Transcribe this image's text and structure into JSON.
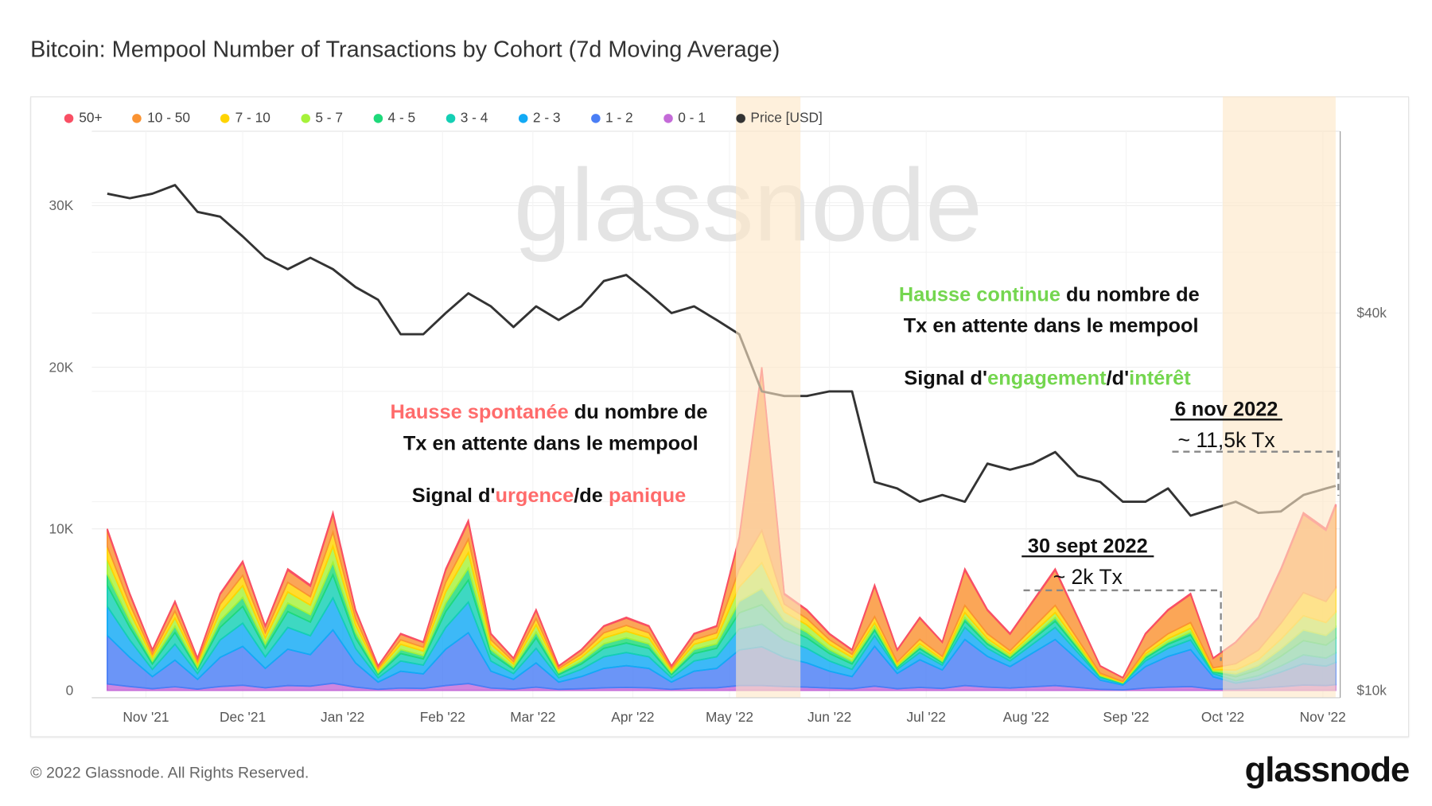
{
  "title": "Bitcoin: Mempool Number of Transactions by Cohort (7d Moving Average)",
  "footer": {
    "copyright": "© 2022 Glassnode. All Rights Reserved.",
    "logo": "glassnode"
  },
  "watermark": "glassnode",
  "colors": {
    "red_annotation": "#ff6b6b",
    "green_annotation": "#74d64f",
    "highlight_band": "#fde6c6"
  },
  "annotations": {
    "left": {
      "l1a": "Hausse spontanée",
      "l1b": " du nombre de",
      "l2": "Tx en attente dans le mempool",
      "l3a": "Signal d'",
      "l3b": "urgence",
      "l3c": "/de ",
      "l3d": "panique"
    },
    "right": {
      "l1a": "Hausse continue",
      "l1b": " du nombre de",
      "l2": "Tx en attente dans le mempool",
      "l3a": "Signal d'",
      "l3b": "engagement",
      "l3c": "/d'",
      "l3d": "intérêt"
    },
    "nov": {
      "date": "6 nov 2022",
      "value": "~ 11,5k Tx"
    },
    "sept": {
      "date": "30 sept 2022",
      "value": "~ 2k Tx"
    }
  },
  "chart_data": {
    "type": "area",
    "stacked": true,
    "title": "Bitcoin: Mempool Number of Transactions by Cohort (7d Moving Average)",
    "legend_position": "top-left",
    "grid": true,
    "series": [
      {
        "name": "50+",
        "color": "#f94f64"
      },
      {
        "name": "10 - 50",
        "color": "#fa9332"
      },
      {
        "name": "7 - 10",
        "color": "#ffd400"
      },
      {
        "name": "5 - 7",
        "color": "#a6f23a"
      },
      {
        "name": "4 - 5",
        "color": "#1ed97a"
      },
      {
        "name": "3 - 4",
        "color": "#14cfb4"
      },
      {
        "name": "2 - 3",
        "color": "#12aaf5"
      },
      {
        "name": "1 - 2",
        "color": "#4a7ef5"
      },
      {
        "name": "0 - 1",
        "color": "#c46bd8"
      }
    ],
    "price_series": {
      "name": "Price [USD]",
      "color": "#333333",
      "scale": "log"
    },
    "y_left": {
      "ticks": [
        "0",
        "10K",
        "20K",
        "30K"
      ],
      "tick_values": [
        0,
        10000,
        20000,
        30000
      ],
      "range": [
        0,
        35000
      ]
    },
    "y_right": {
      "ticks": [
        "$10k",
        "$40k"
      ],
      "tick_values": [
        10000,
        40000
      ],
      "scale": "log"
    },
    "x_ticks": [
      "Nov '21",
      "Dec '21",
      "Jan '22",
      "Feb '22",
      "Mar '22",
      "Apr '22",
      "May '22",
      "Jun '22",
      "Jul '22",
      "Aug '22",
      "Sep '22",
      "Oct '22",
      "Nov '22"
    ],
    "x_tick_dates": [
      "2021-11-01",
      "2021-12-01",
      "2022-01-01",
      "2022-02-01",
      "2022-03-01",
      "2022-04-01",
      "2022-05-01",
      "2022-06-01",
      "2022-07-01",
      "2022-08-01",
      "2022-09-01",
      "2022-10-01",
      "2022-11-01"
    ],
    "highlight_ranges": [
      [
        "2022-05-03",
        "2022-05-23"
      ],
      [
        "2022-10-01",
        "2022-11-05"
      ]
    ],
    "value_unit": "thousand transactions (cohorts in legend order), price in thousand USD",
    "points": [
      {
        "date": "2021-10-20",
        "price": 62,
        "cohorts": [
          0.1,
          1,
          0.8,
          0.9,
          0.7,
          1.3,
          1.8,
          3,
          0.4
        ]
      },
      {
        "date": "2021-10-27",
        "price": 61,
        "cohorts": [
          0.06,
          0.6,
          0.48,
          0.54,
          0.42,
          0.78,
          1.08,
          1.8,
          0.24
        ]
      },
      {
        "date": "2021-11-03",
        "price": 62,
        "cohorts": [
          0.03,
          0.25,
          0.2,
          0.23,
          0.18,
          0.33,
          0.45,
          0.75,
          0.1
        ]
      },
      {
        "date": "2021-11-10",
        "price": 64,
        "cohorts": [
          0.06,
          0.55,
          0.44,
          0.5,
          0.39,
          0.72,
          0.99,
          1.65,
          0.22
        ]
      },
      {
        "date": "2021-11-17",
        "price": 58,
        "cohorts": [
          0.02,
          0.2,
          0.16,
          0.18,
          0.14,
          0.26,
          0.36,
          0.6,
          0.08
        ]
      },
      {
        "date": "2021-11-24",
        "price": 57,
        "cohorts": [
          0.06,
          0.6,
          0.48,
          0.54,
          0.42,
          0.78,
          1.08,
          1.8,
          0.24
        ]
      },
      {
        "date": "2021-12-01",
        "price": 53,
        "cohorts": [
          0.08,
          0.8,
          0.64,
          0.72,
          0.56,
          1.04,
          1.44,
          2.4,
          0.32
        ]
      },
      {
        "date": "2021-12-08",
        "price": 49,
        "cohorts": [
          0.04,
          0.4,
          0.32,
          0.36,
          0.28,
          0.52,
          0.72,
          1.2,
          0.16
        ]
      },
      {
        "date": "2021-12-15",
        "price": 47,
        "cohorts": [
          0.08,
          0.75,
          0.6,
          0.68,
          0.53,
          0.98,
          1.35,
          2.25,
          0.3
        ]
      },
      {
        "date": "2021-12-22",
        "price": 49,
        "cohorts": [
          0.07,
          0.65,
          0.52,
          0.59,
          0.46,
          0.85,
          1.17,
          1.95,
          0.26
        ]
      },
      {
        "date": "2021-12-29",
        "price": 47,
        "cohorts": [
          0.11,
          1.1,
          0.88,
          0.99,
          0.77,
          1.43,
          1.98,
          3.3,
          0.44
        ]
      },
      {
        "date": "2022-01-05",
        "price": 44,
        "cohorts": [
          0.05,
          0.5,
          0.4,
          0.45,
          0.35,
          0.65,
          0.9,
          1.5,
          0.2
        ]
      },
      {
        "date": "2022-01-12",
        "price": 42,
        "cohorts": [
          0.02,
          0.15,
          0.12,
          0.14,
          0.11,
          0.2,
          0.27,
          0.45,
          0.06
        ]
      },
      {
        "date": "2022-01-19",
        "price": 37,
        "cohorts": [
          0.04,
          0.35,
          0.28,
          0.32,
          0.25,
          0.46,
          0.63,
          1.05,
          0.14
        ]
      },
      {
        "date": "2022-01-26",
        "price": 37,
        "cohorts": [
          0.03,
          0.3,
          0.24,
          0.27,
          0.21,
          0.39,
          0.54,
          0.9,
          0.12
        ]
      },
      {
        "date": "2022-02-02",
        "price": 40,
        "cohorts": [
          0.08,
          0.75,
          0.6,
          0.68,
          0.53,
          0.98,
          1.35,
          2.25,
          0.3
        ]
      },
      {
        "date": "2022-02-09",
        "price": 43,
        "cohorts": [
          0.11,
          1.05,
          0.84,
          0.95,
          0.74,
          1.37,
          1.89,
          3.15,
          0.42
        ]
      },
      {
        "date": "2022-02-16",
        "price": 41,
        "cohorts": [
          0.04,
          0.35,
          0.28,
          0.32,
          0.25,
          0.46,
          0.63,
          1.05,
          0.14
        ]
      },
      {
        "date": "2022-02-23",
        "price": 38,
        "cohorts": [
          0.02,
          0.2,
          0.16,
          0.18,
          0.14,
          0.26,
          0.36,
          0.6,
          0.08
        ]
      },
      {
        "date": "2022-03-02",
        "price": 41,
        "cohorts": [
          0.05,
          0.5,
          0.4,
          0.45,
          0.35,
          0.65,
          0.9,
          1.5,
          0.2
        ]
      },
      {
        "date": "2022-03-09",
        "price": 39,
        "cohorts": [
          0.02,
          0.15,
          0.12,
          0.14,
          0.11,
          0.2,
          0.27,
          0.45,
          0.06
        ]
      },
      {
        "date": "2022-03-16",
        "price": 41,
        "cohorts": [
          0.03,
          0.25,
          0.2,
          0.23,
          0.18,
          0.33,
          0.45,
          0.75,
          0.1
        ]
      },
      {
        "date": "2022-03-23",
        "price": 45,
        "cohorts": [
          0.04,
          0.4,
          0.32,
          0.36,
          0.28,
          0.52,
          0.72,
          1.2,
          0.16
        ]
      },
      {
        "date": "2022-03-30",
        "price": 46,
        "cohorts": [
          0.05,
          0.45,
          0.36,
          0.41,
          0.32,
          0.59,
          0.81,
          1.35,
          0.18
        ]
      },
      {
        "date": "2022-04-06",
        "price": 43,
        "cohorts": [
          0.04,
          0.4,
          0.32,
          0.36,
          0.28,
          0.52,
          0.72,
          1.2,
          0.16
        ]
      },
      {
        "date": "2022-04-13",
        "price": 40,
        "cohorts": [
          0.02,
          0.15,
          0.12,
          0.14,
          0.11,
          0.2,
          0.27,
          0.45,
          0.06
        ]
      },
      {
        "date": "2022-04-20",
        "price": 41,
        "cohorts": [
          0.04,
          0.35,
          0.28,
          0.32,
          0.25,
          0.46,
          0.63,
          1.05,
          0.14
        ]
      },
      {
        "date": "2022-04-27",
        "price": 39,
        "cohorts": [
          0.04,
          0.4,
          0.32,
          0.36,
          0.28,
          0.52,
          0.72,
          1.2,
          0.16
        ]
      },
      {
        "date": "2022-05-04",
        "price": 37,
        "cohorts": [
          0.1,
          1.9,
          1.1,
          0.9,
          0.7,
          1,
          1.3,
          2.2,
          0.3
        ]
      },
      {
        "date": "2022-05-11",
        "price": 30,
        "cohorts": [
          0.1,
          10,
          2,
          1.6,
          1,
          1.2,
          1.4,
          2.4,
          0.3
        ]
      },
      {
        "date": "2022-05-18",
        "price": 29.5,
        "cohorts": [
          0.06,
          0.6,
          0.48,
          0.54,
          0.42,
          0.78,
          1.08,
          1.8,
          0.24
        ]
      },
      {
        "date": "2022-05-25",
        "price": 29.5,
        "cohorts": [
          0.05,
          0.5,
          0.4,
          0.45,
          0.35,
          0.65,
          0.9,
          1.5,
          0.2
        ]
      },
      {
        "date": "2022-06-01",
        "price": 30,
        "cohorts": [
          0.04,
          0.35,
          0.28,
          0.32,
          0.25,
          0.46,
          0.63,
          1.05,
          0.14
        ]
      },
      {
        "date": "2022-06-08",
        "price": 30,
        "cohorts": [
          0.03,
          0.25,
          0.2,
          0.23,
          0.18,
          0.33,
          0.45,
          0.75,
          0.1
        ]
      },
      {
        "date": "2022-06-15",
        "price": 21.5,
        "cohorts": [
          0.07,
          1.89,
          0.39,
          0.26,
          0.2,
          0.33,
          0.65,
          2.47,
          0.26
        ]
      },
      {
        "date": "2022-06-22",
        "price": 21,
        "cohorts": [
          0.03,
          0.73,
          0.15,
          0.1,
          0.08,
          0.13,
          0.25,
          0.95,
          0.1
        ]
      },
      {
        "date": "2022-06-29",
        "price": 20,
        "cohorts": [
          0.05,
          1.31,
          0.27,
          0.18,
          0.14,
          0.23,
          0.45,
          1.71,
          0.18
        ]
      },
      {
        "date": "2022-07-06",
        "price": 20.5,
        "cohorts": [
          0.03,
          0.87,
          0.18,
          0.12,
          0.09,
          0.15,
          0.3,
          1.14,
          0.12
        ]
      },
      {
        "date": "2022-07-13",
        "price": 20,
        "cohorts": [
          0.08,
          2.18,
          0.45,
          0.3,
          0.23,
          0.38,
          0.75,
          2.85,
          0.3
        ]
      },
      {
        "date": "2022-07-20",
        "price": 23,
        "cohorts": [
          0.05,
          1.45,
          0.3,
          0.2,
          0.15,
          0.25,
          0.5,
          1.9,
          0.2
        ]
      },
      {
        "date": "2022-07-27",
        "price": 22.5,
        "cohorts": [
          0.04,
          1.02,
          0.21,
          0.14,
          0.11,
          0.18,
          0.35,
          1.33,
          0.14
        ]
      },
      {
        "date": "2022-08-03",
        "price": 23,
        "cohorts": [
          0.06,
          1.6,
          0.33,
          0.22,
          0.17,
          0.28,
          0.55,
          2.09,
          0.22
        ]
      },
      {
        "date": "2022-08-10",
        "price": 24,
        "cohorts": [
          0.08,
          2.18,
          0.45,
          0.3,
          0.23,
          0.38,
          0.75,
          2.85,
          0.3
        ]
      },
      {
        "date": "2022-08-17",
        "price": 22,
        "cohorts": [
          0.05,
          1.31,
          0.27,
          0.18,
          0.14,
          0.23,
          0.45,
          1.71,
          0.18
        ]
      },
      {
        "date": "2022-08-24",
        "price": 21.5,
        "cohorts": [
          0.02,
          0.44,
          0.09,
          0.06,
          0.05,
          0.08,
          0.15,
          0.57,
          0.06
        ]
      },
      {
        "date": "2022-08-31",
        "price": 20,
        "cohorts": [
          0.01,
          0.23,
          0.05,
          0.03,
          0.02,
          0.04,
          0.08,
          0.3,
          0.03
        ]
      },
      {
        "date": "2022-09-07",
        "price": 20,
        "cohorts": [
          0.04,
          1.02,
          0.21,
          0.14,
          0.11,
          0.18,
          0.35,
          1.33,
          0.14
        ]
      },
      {
        "date": "2022-09-14",
        "price": 21,
        "cohorts": [
          0.05,
          1.45,
          0.3,
          0.2,
          0.15,
          0.25,
          0.5,
          1.9,
          0.2
        ]
      },
      {
        "date": "2022-09-21",
        "price": 19,
        "cohorts": [
          0.06,
          1.74,
          0.36,
          0.24,
          0.18,
          0.3,
          0.6,
          2.28,
          0.24
        ]
      },
      {
        "date": "2022-09-28",
        "price": 19.5,
        "cohorts": [
          0.02,
          0.58,
          0.12,
          0.08,
          0.06,
          0.1,
          0.2,
          0.76,
          0.08
        ]
      },
      {
        "date": "2022-10-05",
        "price": 20,
        "cohorts": [
          0.03,
          1.32,
          0.39,
          0.24,
          0.18,
          0.24,
          0.15,
          0.36,
          0.09
        ]
      },
      {
        "date": "2022-10-12",
        "price": 19.2,
        "cohorts": [
          0.05,
          1.98,
          0.59,
          0.36,
          0.27,
          0.36,
          0.23,
          0.54,
          0.14
        ]
      },
      {
        "date": "2022-10-19",
        "price": 19.3,
        "cohorts": [
          0.08,
          3.3,
          0.98,
          0.6,
          0.45,
          0.6,
          0.38,
          0.9,
          0.23
        ]
      },
      {
        "date": "2022-10-26",
        "price": 20.5,
        "cohorts": [
          0.11,
          4.84,
          1.43,
          0.88,
          0.66,
          0.88,
          0.55,
          1.32,
          0.33
        ]
      },
      {
        "date": "2022-11-02",
        "price": 21,
        "cohorts": [
          0.1,
          4.4,
          1.3,
          0.8,
          0.6,
          0.8,
          0.5,
          1.2,
          0.3
        ]
      },
      {
        "date": "2022-11-05",
        "price": 21.2,
        "cohorts": [
          0.12,
          5.06,
          1.5,
          0.92,
          0.69,
          0.92,
          0.58,
          1.38,
          0.35
        ]
      }
    ]
  }
}
